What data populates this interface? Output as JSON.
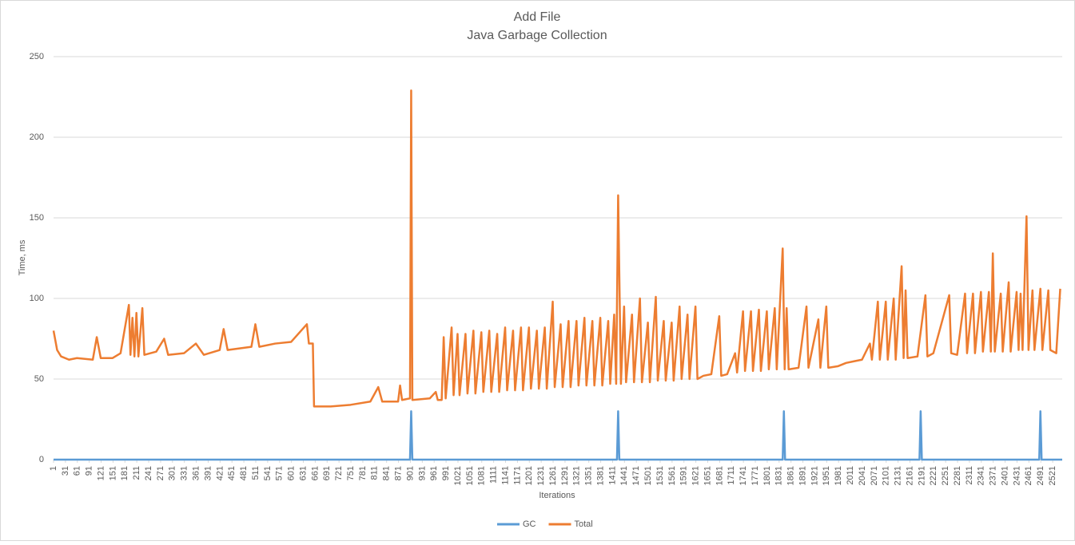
{
  "chart_data": {
    "type": "line",
    "title": "Add File",
    "subtitle": "Java Garbage Collection",
    "x_label": "Iterations",
    "y_label": "Time, ms",
    "xlim": [
      1,
      2545
    ],
    "xticks": [
      1,
      31,
      61,
      91,
      121,
      151,
      181,
      211,
      241,
      271,
      301,
      331,
      361,
      391,
      421,
      451,
      481,
      511,
      541,
      571,
      601,
      631,
      661,
      691,
      721,
      751,
      781,
      811,
      841,
      871,
      901,
      931,
      961,
      991,
      1021,
      1051,
      1081,
      1111,
      1141,
      1171,
      1201,
      1231,
      1261,
      1291,
      1321,
      1351,
      1381,
      1411,
      1441,
      1471,
      1501,
      1531,
      1561,
      1591,
      1621,
      1651,
      1681,
      1711,
      1741,
      1771,
      1801,
      1831,
      1861,
      1891,
      1921,
      1951,
      1981,
      2011,
      2041,
      2071,
      2101,
      2131,
      2161,
      2191,
      2221,
      2251,
      2281,
      2311,
      2341,
      2371,
      2401,
      2431,
      2461,
      2491,
      2521
    ],
    "ylim": [
      0,
      250
    ],
    "yticks": [
      0,
      50,
      100,
      150,
      200,
      250
    ],
    "grid": true,
    "legend": "bottom",
    "series": [
      {
        "name": "GC",
        "color": "#5b9bd5",
        "x": [
          1,
          900,
          903,
          906,
          1422,
          1425,
          1428,
          1840,
          1843,
          1846,
          2185,
          2188,
          2191,
          2487,
          2490,
          2493,
          2545
        ],
        "values": [
          0,
          0,
          30,
          0,
          0,
          30,
          0,
          0,
          30,
          0,
          0,
          30,
          0,
          0,
          30,
          0,
          0
        ]
      },
      {
        "name": "Total",
        "color": "#ed7d31",
        "x": [
          1,
          10,
          20,
          40,
          60,
          100,
          110,
          120,
          150,
          170,
          191,
          195,
          200,
          205,
          210,
          215,
          225,
          230,
          260,
          280,
          290,
          330,
          360,
          380,
          420,
          430,
          440,
          500,
          510,
          520,
          560,
          600,
          640,
          645,
          655,
          658,
          700,
          750,
          800,
          820,
          830,
          870,
          875,
          880,
          900,
          903,
          906,
          950,
          965,
          970,
          980,
          985,
          990,
          1005,
          1010,
          1020,
          1025,
          1040,
          1045,
          1060,
          1065,
          1080,
          1085,
          1100,
          1105,
          1120,
          1125,
          1140,
          1145,
          1160,
          1165,
          1180,
          1185,
          1200,
          1205,
          1220,
          1225,
          1240,
          1245,
          1260,
          1265,
          1280,
          1285,
          1300,
          1305,
          1320,
          1325,
          1340,
          1345,
          1360,
          1365,
          1380,
          1385,
          1400,
          1405,
          1415,
          1420,
          1425,
          1432,
          1440,
          1445,
          1460,
          1465,
          1480,
          1485,
          1500,
          1505,
          1520,
          1525,
          1540,
          1545,
          1560,
          1565,
          1580,
          1585,
          1600,
          1605,
          1620,
          1625,
          1640,
          1660,
          1680,
          1685,
          1700,
          1720,
          1725,
          1740,
          1745,
          1760,
          1765,
          1780,
          1785,
          1800,
          1805,
          1820,
          1825,
          1840,
          1845,
          1850,
          1855,
          1880,
          1900,
          1905,
          1930,
          1935,
          1950,
          1955,
          1980,
          2000,
          2020,
          2040,
          2060,
          2065,
          2080,
          2085,
          2100,
          2105,
          2120,
          2125,
          2140,
          2145,
          2150,
          2155,
          2180,
          2200,
          2205,
          2220,
          2260,
          2265,
          2280,
          2300,
          2305,
          2320,
          2325,
          2340,
          2345,
          2360,
          2365,
          2370,
          2375,
          2390,
          2395,
          2410,
          2415,
          2430,
          2435,
          2440,
          2445,
          2455,
          2460,
          2470,
          2475,
          2490,
          2495,
          2510,
          2515,
          2530,
          2540
        ],
        "values": [
          80,
          68,
          64,
          62,
          63,
          62,
          76,
          63,
          63,
          66,
          96,
          65,
          88,
          64,
          91,
          64,
          94,
          65,
          67,
          75,
          65,
          66,
          72,
          65,
          68,
          81,
          68,
          70,
          84,
          70,
          72,
          73,
          84,
          72,
          72,
          33,
          33,
          34,
          36,
          45,
          36,
          36,
          46,
          37,
          38,
          229,
          37,
          38,
          42,
          37,
          37,
          76,
          38,
          82,
          40,
          78,
          40,
          78,
          41,
          80,
          41,
          79,
          42,
          80,
          42,
          78,
          42,
          82,
          43,
          80,
          43,
          82,
          43,
          82,
          44,
          80,
          44,
          82,
          44,
          98,
          45,
          84,
          45,
          86,
          45,
          86,
          46,
          88,
          46,
          86,
          46,
          88,
          46,
          86,
          47,
          90,
          47,
          164,
          47,
          95,
          48,
          90,
          48,
          100,
          48,
          85,
          48,
          101,
          49,
          86,
          49,
          85,
          49,
          95,
          50,
          90,
          50,
          95,
          50,
          52,
          53,
          89,
          52,
          53,
          66,
          54,
          92,
          55,
          92,
          55,
          93,
          55,
          92,
          56,
          94,
          56,
          131,
          56,
          94,
          56,
          57,
          95,
          57,
          87,
          57,
          95,
          57,
          58,
          60,
          61,
          62,
          72,
          62,
          98,
          62,
          98,
          62,
          100,
          62,
          120,
          63,
          105,
          63,
          64,
          102,
          64,
          66,
          102,
          66,
          65,
          103,
          66,
          103,
          66,
          104,
          67,
          104,
          67,
          128,
          67,
          103,
          67,
          110,
          67,
          104,
          68,
          103,
          68,
          151,
          68,
          105,
          68,
          106,
          68,
          105,
          68,
          66,
          106
        ]
      }
    ]
  }
}
